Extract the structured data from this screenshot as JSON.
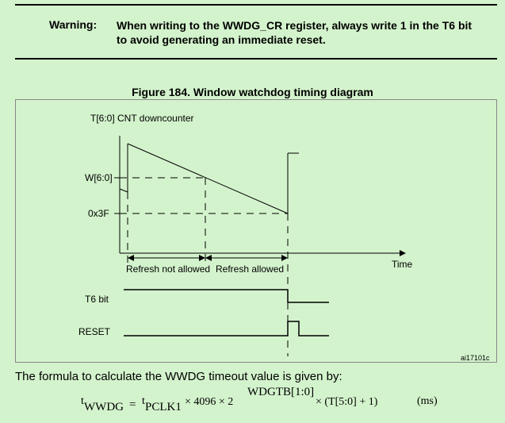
{
  "warning": {
    "label": "Warning:",
    "text": "When writing to the WWDG_CR register, always write 1 in the T6 bit to avoid generating an immediate reset."
  },
  "figure": {
    "title": "Figure 184. Window watchdog timing diagram",
    "y_axis_label": "T[6:0] CNT downcounter",
    "w_level_label": "W[6:0]",
    "hex_level_label": "0x3F",
    "x_axis_label": "Time",
    "refresh_not_allowed": "Refresh not allowed",
    "refresh_allowed": "Refresh allowed",
    "t6_label": "T6 bit",
    "reset_label": "RESET",
    "ref_code": "ai17101c"
  },
  "formula": {
    "intro": "The formula to calculate the WWDG timeout value is given by:",
    "t": "t",
    "wwdg_sub": "WWDG",
    "equals": "=",
    "pclk_sub": "PCLK1",
    "times1": "× 4096 × 2",
    "exponent": "WDGTB[1:0]",
    "times2": "× (T[5:0] + 1)",
    "units": "(ms)"
  }
}
